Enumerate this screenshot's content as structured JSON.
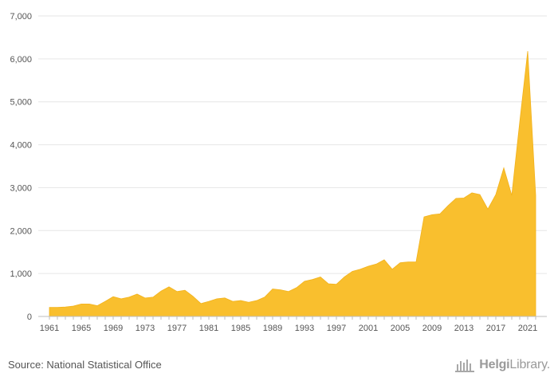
{
  "chart_data": {
    "type": "area",
    "title": "",
    "xlabel": "",
    "ylabel": "",
    "ylim": [
      0,
      7000
    ],
    "y_ticks": [
      0,
      1000,
      2000,
      3000,
      4000,
      5000,
      6000,
      7000
    ],
    "y_tick_labels": [
      "0",
      "1,000",
      "2,000",
      "3,000",
      "4,000",
      "5,000",
      "6,000",
      "7,000"
    ],
    "x_ticks": [
      1961,
      1965,
      1969,
      1973,
      1977,
      1981,
      1985,
      1989,
      1993,
      1997,
      2001,
      2005,
      2009,
      2013,
      2017,
      2021
    ],
    "x_tick_labels": [
      "1961",
      "1965",
      "1969",
      "1973",
      "1977",
      "1981",
      "1985",
      "1989",
      "1993",
      "1997",
      "2001",
      "2005",
      "2009",
      "2013",
      "2017",
      "2021"
    ],
    "grid": true,
    "fill_color": "#f9bf2e",
    "series": [
      {
        "x": [
          1961,
          1962,
          1963,
          1964,
          1965,
          1966,
          1967,
          1968,
          1969,
          1970,
          1971,
          1972,
          1973,
          1974,
          1975,
          1976,
          1977,
          1978,
          1979,
          1980,
          1981,
          1982,
          1983,
          1984,
          1985,
          1986,
          1987,
          1988,
          1989,
          1990,
          1991,
          1992,
          1993,
          1994,
          1995,
          1996,
          1997,
          1998,
          1999,
          2000,
          2001,
          2002,
          2003,
          2004,
          2005,
          2006,
          2007,
          2008,
          2009,
          2010,
          2011,
          2012,
          2013,
          2014,
          2015,
          2016,
          2017,
          2018,
          2019,
          2020,
          2021,
          2022
        ],
        "values": [
          210,
          210,
          220,
          240,
          290,
          290,
          250,
          350,
          460,
          410,
          450,
          520,
          430,
          450,
          590,
          690,
          580,
          610,
          470,
          300,
          350,
          410,
          430,
          350,
          370,
          330,
          370,
          450,
          640,
          620,
          580,
          670,
          820,
          860,
          920,
          760,
          750,
          920,
          1050,
          1100,
          1170,
          1220,
          1320,
          1100,
          1250,
          1270,
          1270,
          2320,
          2370,
          2390,
          2580,
          2750,
          2760,
          2880,
          2840,
          2500,
          2840,
          3460,
          2820,
          4530,
          6180,
          2820
        ]
      }
    ]
  },
  "source_text": "Source: National Statistical Office",
  "logo": {
    "bold": "Helgi",
    "regular": "Library."
  }
}
